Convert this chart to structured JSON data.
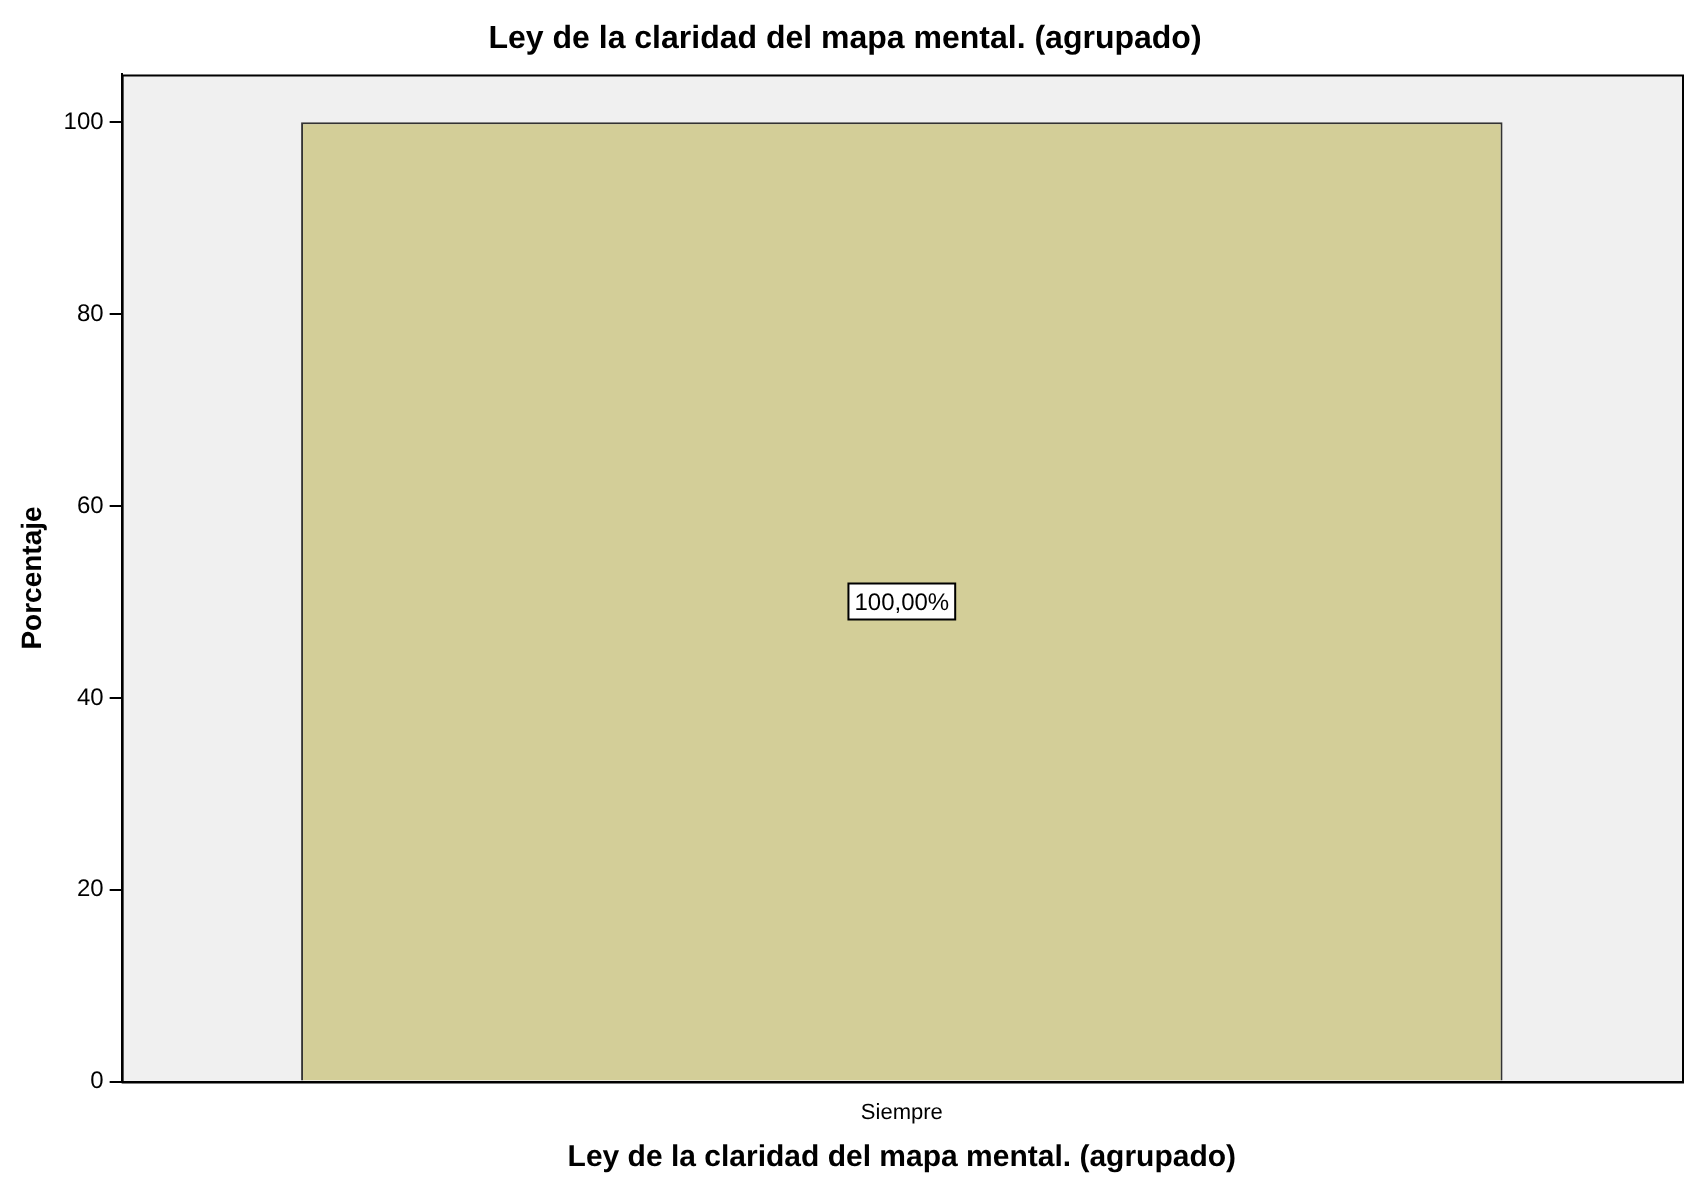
{
  "chart_data": {
    "type": "bar",
    "title": "Ley de la claridad del mapa mental. (agrupado)",
    "xlabel": "Ley de la claridad del mapa mental. (agrupado)",
    "ylabel": "Porcentaje",
    "categories": [
      "Siempre"
    ],
    "values": [
      100
    ],
    "value_labels": [
      "100,00%"
    ],
    "color": "#d3ce98",
    "ylim": [
      0,
      105
    ],
    "yticks": [
      0,
      20,
      40,
      60,
      80,
      100
    ],
    "grid": false,
    "legend": false
  }
}
